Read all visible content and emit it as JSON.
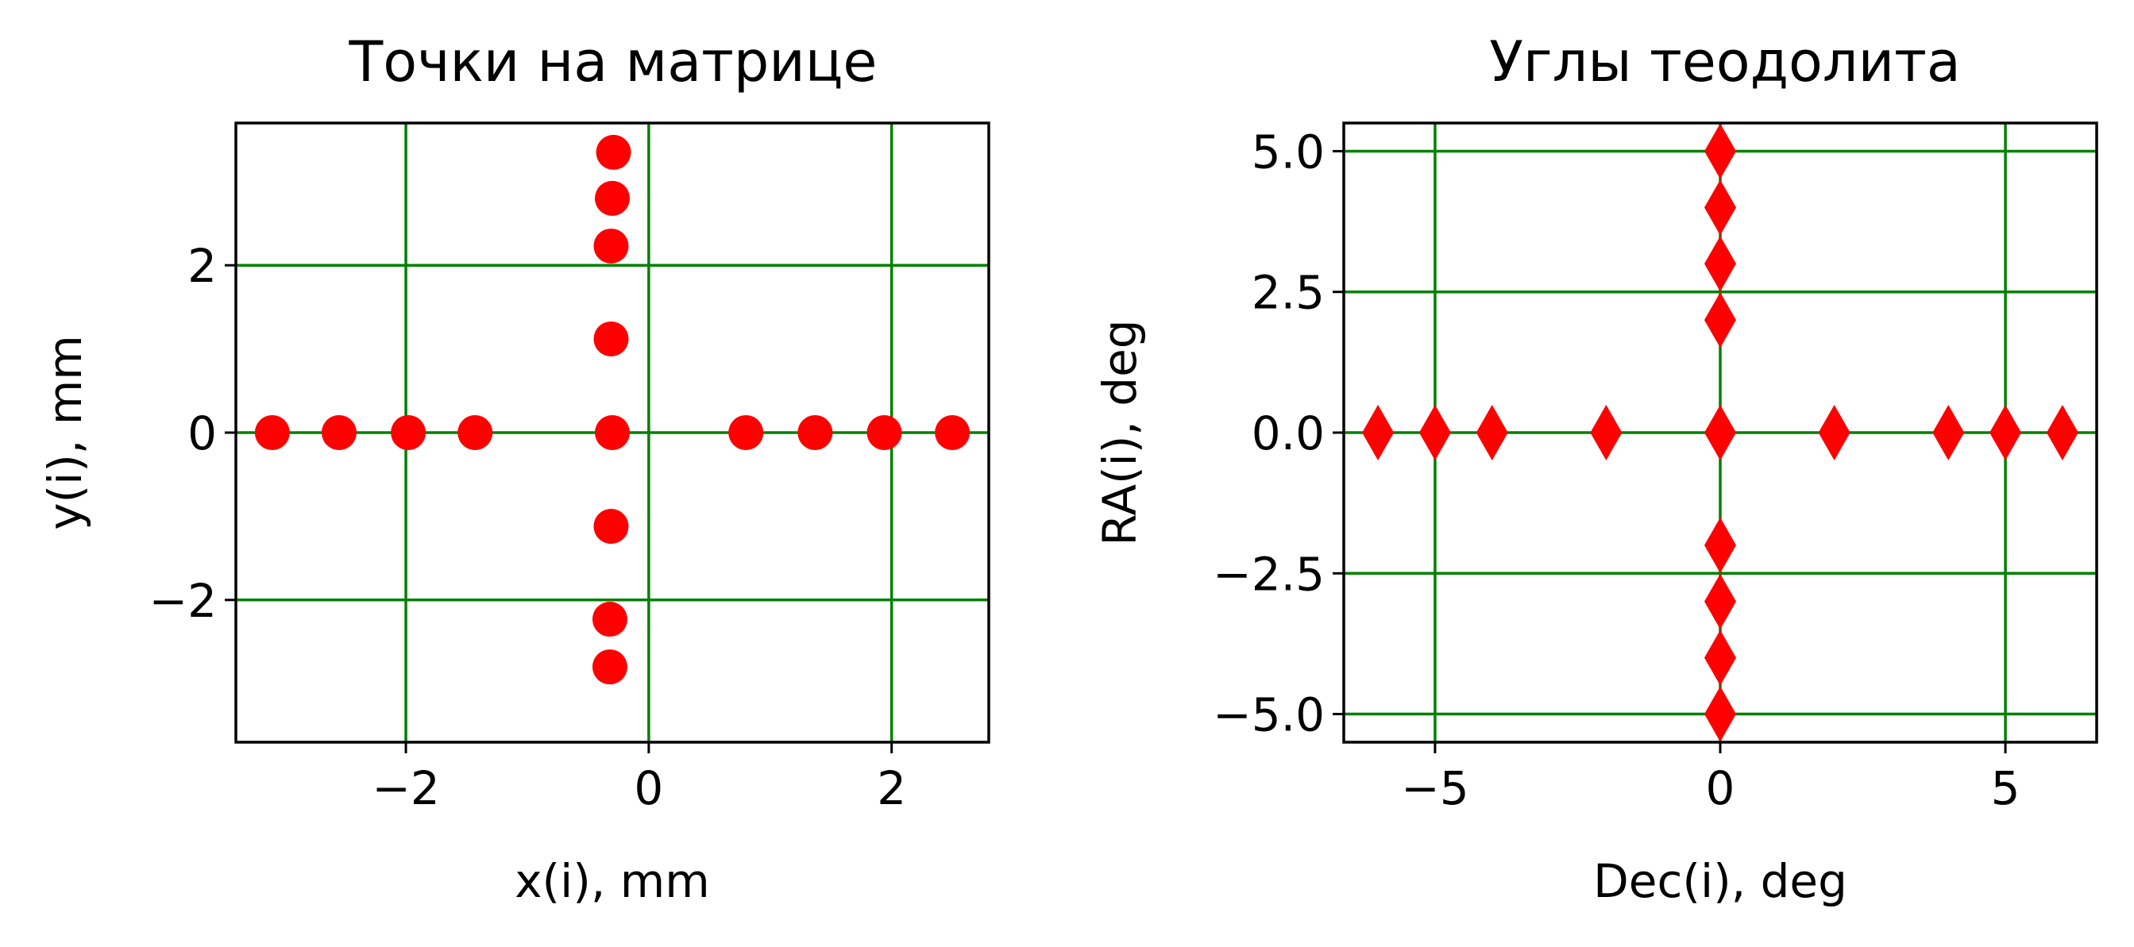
{
  "chart_data": [
    {
      "type": "scatter",
      "title": "Точки на матрице",
      "xlabel": "x(i), mm",
      "ylabel": "y(i), mm",
      "xlim": [
        -3.4,
        2.8
      ],
      "ylim": [
        -3.7,
        3.7
      ],
      "xticks": [
        -2,
        0,
        2
      ],
      "yticks": [
        -2,
        0,
        2
      ],
      "xtick_labels": [
        "−2",
        "0",
        "2"
      ],
      "ytick_labels": [
        "−2",
        "0",
        "2"
      ],
      "grid": true,
      "grid_color": "#008000",
      "marker": "circle",
      "marker_color": "#ff0000",
      "x": [
        -3.1,
        -2.55,
        -1.98,
        -1.43,
        -0.3,
        0.8,
        1.37,
        1.94,
        2.5,
        -0.29,
        -0.3,
        -0.31,
        -0.31,
        -0.31,
        -0.32,
        -0.32
      ],
      "y": [
        0,
        0,
        0,
        0,
        0,
        0,
        0,
        0,
        0,
        3.35,
        2.8,
        2.23,
        1.12,
        -1.12,
        -2.23,
        -2.8
      ]
    },
    {
      "type": "scatter",
      "title": "Углы теодолита",
      "xlabel": "Dec(i), deg",
      "ylabel": "RA(i), deg",
      "xlim": [
        -6.6,
        6.6
      ],
      "ylim": [
        -5.5,
        5.5
      ],
      "xticks": [
        -5,
        0,
        5
      ],
      "yticks": [
        -5.0,
        -2.5,
        0.0,
        2.5,
        5.0
      ],
      "xtick_labels": [
        "−5",
        "0",
        "5"
      ],
      "ytick_labels": [
        "−5.0",
        "−2.5",
        "0.0",
        "2.5",
        "5.0"
      ],
      "grid": true,
      "grid_color": "#008000",
      "marker": "thin_diamond",
      "marker_color": "#ff0000",
      "x": [
        -6,
        -5,
        -4,
        -2,
        0,
        2,
        4,
        5,
        6,
        0,
        0,
        0,
        0,
        0,
        0,
        0,
        0
      ],
      "y": [
        0,
        0,
        0,
        0,
        0,
        0,
        0,
        0,
        0,
        5,
        4,
        3,
        2,
        -2,
        -3,
        -4,
        -5
      ]
    }
  ]
}
